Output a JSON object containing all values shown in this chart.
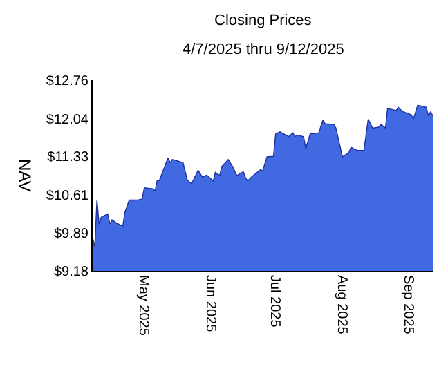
{
  "chart_data": {
    "type": "area",
    "title": "Closing Prices",
    "subtitle": "4/7/2025 thru 9/12/2025",
    "ylabel": "NAV",
    "x": [
      "2025-04-07",
      "2025-04-08",
      "2025-04-09",
      "2025-04-10",
      "2025-04-11",
      "2025-04-14",
      "2025-04-15",
      "2025-04-16",
      "2025-04-18",
      "2025-04-21",
      "2025-04-22",
      "2025-04-24",
      "2025-04-28",
      "2025-04-30",
      "2025-05-01",
      "2025-05-05",
      "2025-05-06",
      "2025-05-07",
      "2025-05-08",
      "2025-05-12",
      "2025-05-13",
      "2025-05-14",
      "2025-05-16",
      "2025-05-19",
      "2025-05-21",
      "2025-05-23",
      "2025-05-26",
      "2025-05-28",
      "2025-05-30",
      "2025-06-02",
      "2025-06-03",
      "2025-06-05",
      "2025-06-06",
      "2025-06-09",
      "2025-06-11",
      "2025-06-13",
      "2025-06-16",
      "2025-06-17",
      "2025-06-18",
      "2025-06-20",
      "2025-06-24",
      "2025-06-25",
      "2025-06-27",
      "2025-06-30",
      "2025-07-01",
      "2025-07-03",
      "2025-07-07",
      "2025-07-09",
      "2025-07-10",
      "2025-07-11",
      "2025-07-14",
      "2025-07-15",
      "2025-07-17",
      "2025-07-21",
      "2025-07-23",
      "2025-07-24",
      "2025-07-28",
      "2025-07-29",
      "2025-08-01",
      "2025-08-04",
      "2025-08-05",
      "2025-08-08",
      "2025-08-11",
      "2025-08-13",
      "2025-08-15",
      "2025-08-18",
      "2025-08-19",
      "2025-08-21",
      "2025-08-22",
      "2025-08-25",
      "2025-08-26",
      "2025-08-27",
      "2025-08-29",
      "2025-09-02",
      "2025-09-03",
      "2025-09-05",
      "2025-09-08",
      "2025-09-09",
      "2025-09-10",
      "2025-09-11",
      "2025-09-12"
    ],
    "values": [
      9.8,
      9.63,
      10.52,
      10.06,
      10.19,
      10.25,
      10.06,
      10.14,
      10.08,
      10.02,
      10.28,
      10.51,
      10.51,
      10.53,
      10.74,
      10.72,
      10.68,
      10.88,
      10.88,
      11.3,
      11.21,
      11.27,
      11.25,
      11.21,
      10.88,
      10.82,
      11.07,
      10.94,
      10.98,
      10.87,
      11.03,
      10.97,
      11.14,
      11.27,
      11.14,
      10.97,
      11.04,
      10.93,
      10.87,
      10.95,
      11.08,
      11.06,
      11.32,
      11.33,
      11.75,
      11.79,
      11.7,
      11.77,
      11.7,
      11.73,
      11.7,
      11.47,
      11.75,
      11.77,
      12.01,
      11.94,
      11.93,
      11.86,
      11.32,
      11.4,
      11.5,
      11.44,
      11.44,
      12.03,
      11.86,
      11.88,
      11.93,
      11.86,
      12.23,
      12.2,
      12.19,
      12.25,
      12.17,
      12.11,
      12.03,
      12.29,
      12.26,
      12.25,
      12.09,
      12.17,
      12.09
    ],
    "color": "#4169e1",
    "xlim": [
      "2025-04-07",
      "2025-09-12"
    ],
    "xticks": [
      {
        "value": "2025-05-01",
        "label": "May 2025"
      },
      {
        "value": "2025-06-01",
        "label": "Jun 2025"
      },
      {
        "value": "2025-07-01",
        "label": "Jul 2025"
      },
      {
        "value": "2025-08-01",
        "label": "Aug 2025"
      },
      {
        "value": "2025-09-01",
        "label": "Sep 2025"
      }
    ],
    "ylim": [
      9.18,
      12.76
    ],
    "yticks": [
      {
        "value": 9.18,
        "label": "$9.18"
      },
      {
        "value": 9.89,
        "label": "$9.89"
      },
      {
        "value": 10.61,
        "label": "$10.61"
      },
      {
        "value": 11.33,
        "label": "$11.33"
      },
      {
        "value": 12.04,
        "label": "$12.04"
      },
      {
        "value": 12.76,
        "label": "$12.76"
      }
    ],
    "grid": false,
    "legend": false
  }
}
